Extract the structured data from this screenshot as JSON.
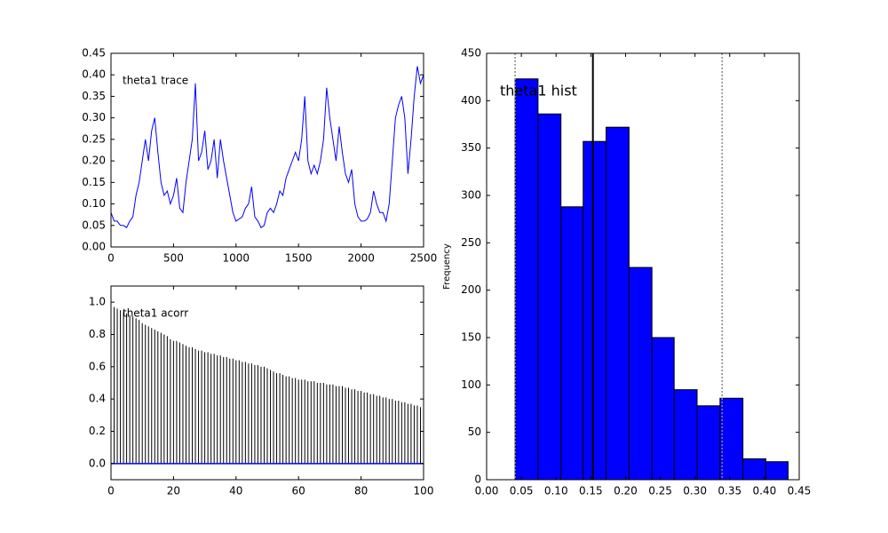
{
  "chart_data": [
    {
      "type": "line",
      "annotation": "theta1 trace",
      "color": "#0000ff",
      "x": [
        0,
        25,
        50,
        75,
        100,
        125,
        150,
        175,
        200,
        225,
        250,
        275,
        300,
        325,
        350,
        375,
        400,
        425,
        450,
        475,
        500,
        525,
        550,
        575,
        600,
        625,
        650,
        675,
        700,
        725,
        750,
        775,
        800,
        825,
        850,
        875,
        900,
        925,
        950,
        975,
        1000,
        1025,
        1050,
        1075,
        1100,
        1125,
        1150,
        1175,
        1200,
        1225,
        1250,
        1275,
        1300,
        1325,
        1350,
        1375,
        1400,
        1425,
        1450,
        1475,
        1500,
        1525,
        1550,
        1575,
        1600,
        1625,
        1650,
        1675,
        1700,
        1725,
        1750,
        1775,
        1800,
        1825,
        1850,
        1875,
        1900,
        1925,
        1950,
        1975,
        2000,
        2025,
        2050,
        2075,
        2100,
        2125,
        2150,
        2175,
        2200,
        2225,
        2250,
        2275,
        2300,
        2325,
        2350,
        2375,
        2400,
        2425,
        2450,
        2475,
        2500
      ],
      "values": [
        0.08,
        0.06,
        0.06,
        0.05,
        0.05,
        0.045,
        0.06,
        0.07,
        0.12,
        0.15,
        0.2,
        0.25,
        0.2,
        0.27,
        0.3,
        0.22,
        0.15,
        0.12,
        0.13,
        0.1,
        0.12,
        0.16,
        0.09,
        0.08,
        0.15,
        0.2,
        0.25,
        0.38,
        0.2,
        0.22,
        0.27,
        0.18,
        0.2,
        0.25,
        0.16,
        0.25,
        0.2,
        0.16,
        0.12,
        0.08,
        0.06,
        0.065,
        0.07,
        0.09,
        0.1,
        0.14,
        0.07,
        0.06,
        0.045,
        0.05,
        0.08,
        0.09,
        0.08,
        0.1,
        0.13,
        0.12,
        0.16,
        0.18,
        0.2,
        0.22,
        0.2,
        0.25,
        0.35,
        0.2,
        0.17,
        0.19,
        0.17,
        0.2,
        0.25,
        0.37,
        0.3,
        0.25,
        0.2,
        0.28,
        0.22,
        0.17,
        0.15,
        0.18,
        0.1,
        0.07,
        0.06,
        0.06,
        0.065,
        0.08,
        0.13,
        0.1,
        0.08,
        0.08,
        0.06,
        0.1,
        0.2,
        0.3,
        0.33,
        0.35,
        0.3,
        0.17,
        0.25,
        0.35,
        0.42,
        0.38,
        0.4
      ],
      "xlim": [
        0,
        2500
      ],
      "xticks": [
        0,
        500,
        1000,
        1500,
        2000,
        2500
      ],
      "ylim": [
        0,
        0.45
      ],
      "yticks": [
        {
          "value": 0,
          "label": "0.00"
        },
        0.05,
        {
          "value": 0.1,
          "label": "0.10"
        },
        0.15,
        {
          "value": 0.2,
          "label": "0.20"
        },
        0.25,
        {
          "value": 0.3,
          "label": "0.30"
        },
        0.35,
        {
          "value": 0.4,
          "label": "0.40"
        },
        0.45
      ]
    },
    {
      "type": "stem",
      "annotation": "theta1 acorr",
      "color": "#000000",
      "x": [
        0,
        1,
        2,
        3,
        4,
        5,
        6,
        7,
        8,
        9,
        10,
        11,
        12,
        13,
        14,
        15,
        16,
        17,
        18,
        19,
        20,
        21,
        22,
        23,
        24,
        25,
        26,
        27,
        28,
        29,
        30,
        31,
        32,
        33,
        34,
        35,
        36,
        37,
        38,
        39,
        40,
        41,
        42,
        43,
        44,
        45,
        46,
        47,
        48,
        49,
        50,
        51,
        52,
        53,
        54,
        55,
        56,
        57,
        58,
        59,
        60,
        61,
        62,
        63,
        64,
        65,
        66,
        67,
        68,
        69,
        70,
        71,
        72,
        73,
        74,
        75,
        76,
        77,
        78,
        79,
        80,
        81,
        82,
        83,
        84,
        85,
        86,
        87,
        88,
        89,
        90,
        91,
        92,
        93,
        94,
        95,
        96,
        97,
        98,
        99,
        100
      ],
      "values": [
        1.0,
        0.97,
        0.96,
        0.95,
        0.94,
        0.93,
        0.92,
        0.91,
        0.9,
        0.89,
        0.87,
        0.86,
        0.85,
        0.84,
        0.83,
        0.82,
        0.81,
        0.8,
        0.79,
        0.77,
        0.76,
        0.76,
        0.75,
        0.74,
        0.73,
        0.72,
        0.72,
        0.71,
        0.7,
        0.7,
        0.69,
        0.69,
        0.68,
        0.68,
        0.67,
        0.67,
        0.66,
        0.66,
        0.65,
        0.65,
        0.64,
        0.64,
        0.63,
        0.63,
        0.62,
        0.62,
        0.61,
        0.61,
        0.6,
        0.6,
        0.59,
        0.58,
        0.57,
        0.56,
        0.56,
        0.55,
        0.54,
        0.54,
        0.53,
        0.53,
        0.52,
        0.52,
        0.52,
        0.51,
        0.51,
        0.51,
        0.5,
        0.5,
        0.5,
        0.49,
        0.49,
        0.49,
        0.48,
        0.48,
        0.48,
        0.47,
        0.47,
        0.46,
        0.46,
        0.45,
        0.45,
        0.44,
        0.44,
        0.43,
        0.43,
        0.42,
        0.42,
        0.41,
        0.41,
        0.4,
        0.4,
        0.39,
        0.39,
        0.38,
        0.38,
        0.37,
        0.37,
        0.36,
        0.36,
        0.35,
        0.35
      ],
      "reference_lines": [
        {
          "value": 0,
          "orientation": "horizontal",
          "color": "#0000ff",
          "style": "solid"
        }
      ],
      "xlim": [
        0,
        100
      ],
      "xticks": [
        0,
        20,
        40,
        60,
        80,
        100
      ],
      "ylim": [
        -0.1,
        1.1
      ],
      "yticks": [
        {
          "value": 0,
          "label": "0.0"
        },
        0.2,
        0.4,
        0.6,
        0.8,
        {
          "value": 1,
          "label": "1.0"
        }
      ]
    },
    {
      "type": "histogram",
      "annotation": "theta1 hist",
      "ylabel": "Frequency",
      "color": "#0000ff",
      "bins": [
        0.041,
        0.074,
        0.107,
        0.139,
        0.172,
        0.205,
        0.238,
        0.27,
        0.303,
        0.336,
        0.369,
        0.402,
        0.434
      ],
      "values": [
        423,
        386,
        288,
        357,
        372,
        224,
        150,
        95,
        78,
        86,
        22,
        19
      ],
      "reference_lines": [
        {
          "value": 0.153,
          "orientation": "vertical",
          "color": "#000000",
          "style": "solid"
        },
        {
          "value": 0.041,
          "orientation": "vertical",
          "color": "#888888",
          "style": "dotted"
        },
        {
          "value": 0.339,
          "orientation": "vertical",
          "color": "#888888",
          "style": "dotted"
        }
      ],
      "xlim": [
        0,
        0.45
      ],
      "xticks": [
        {
          "value": 0,
          "label": "0.00"
        },
        0.05,
        {
          "value": 0.1,
          "label": "0.10"
        },
        0.15,
        {
          "value": 0.2,
          "label": "0.20"
        },
        0.25,
        {
          "value": 0.3,
          "label": "0.30"
        },
        0.35,
        {
          "value": 0.4,
          "label": "0.40"
        },
        0.45
      ],
      "ylim": [
        0,
        450
      ],
      "yticks": [
        0,
        50,
        100,
        150,
        200,
        250,
        300,
        350,
        400,
        450
      ]
    }
  ]
}
